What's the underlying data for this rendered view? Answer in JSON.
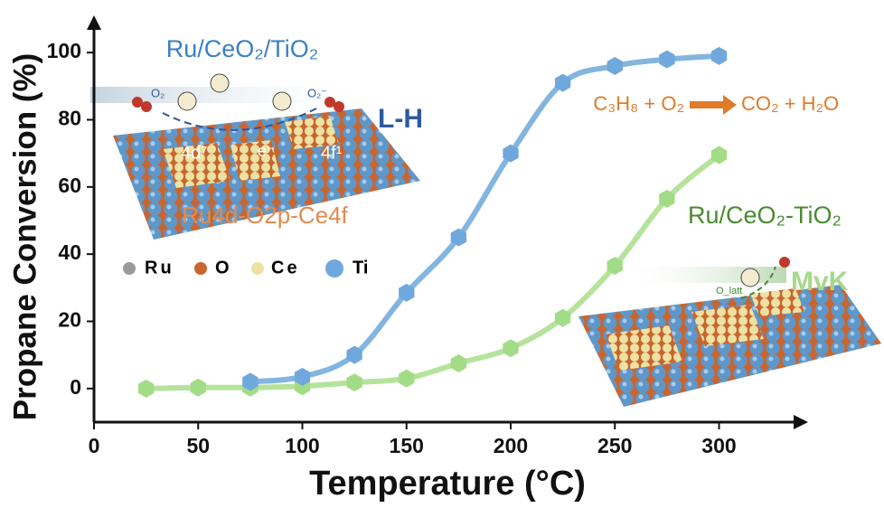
{
  "chart_data": {
    "type": "line",
    "x_label": "Temperature (°C)",
    "y_label": "Propane Conversion (%)",
    "xlim": [
      0,
      341
    ],
    "ylim": [
      -10,
      110
    ],
    "xticks": [
      0,
      50,
      100,
      150,
      200,
      250,
      300
    ],
    "yticks": [
      0,
      20,
      40,
      60,
      80,
      100
    ],
    "grid": false,
    "series": [
      {
        "name": "Ru/CeO₂/TiO₂",
        "color": "#82b5df",
        "marker_color": "#6fa8dc",
        "x": [
          75,
          100,
          125,
          150,
          175,
          200,
          225,
          250,
          275,
          300
        ],
        "values": [
          2,
          3.5,
          10,
          28.5,
          45,
          70,
          91,
          96,
          98,
          99
        ]
      },
      {
        "name": "Ru/CeO₂-TiO₂",
        "color": "#b5e39c",
        "marker_color": "#a3dc86",
        "x": [
          25,
          50,
          75,
          100,
          125,
          150,
          175,
          200,
          225,
          250,
          275,
          300
        ],
        "values": [
          0,
          0.3,
          0.3,
          0.7,
          1.8,
          3,
          7.5,
          12,
          21,
          36.5,
          56.5,
          69.5
        ]
      }
    ],
    "annotations": {
      "mechanism_1": "L-H",
      "mechanism_2": "MvK",
      "orbital": "Ru4d-O2p-Ce4f",
      "reaction_left": "C₃H₈ + O₂",
      "reaction_right": "CO₂ + H₂O",
      "orbital_left": "4d⁷",
      "orbital_right": "4f¹",
      "electron": "e⁻",
      "oxygen": "O₂",
      "superoxide": "O₂⁻",
      "lattice_oxygen": "O_latt",
      "atoms": [
        "Ru",
        "O",
        "Ce",
        "Ti"
      ]
    }
  }
}
